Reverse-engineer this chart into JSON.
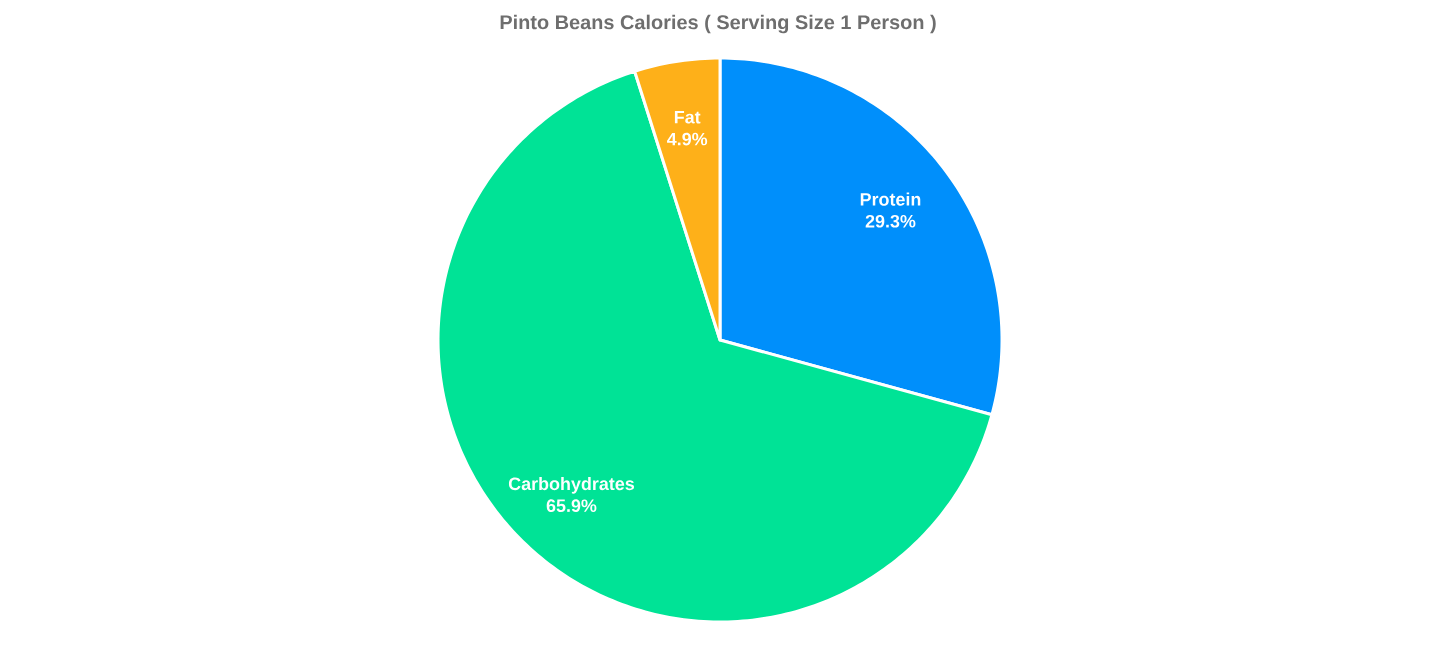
{
  "chart_data": {
    "type": "pie",
    "title": "Pinto Beans Calories ( Serving Size 1 Person )",
    "categories": [
      "Protein",
      "Carbohydrates",
      "Fat"
    ],
    "values": [
      29.3,
      65.9,
      4.9
    ],
    "value_labels": [
      "29.3%",
      "65.9%",
      "4.9%"
    ],
    "colors": [
      "#008ffb",
      "#00e396",
      "#feb019"
    ]
  }
}
